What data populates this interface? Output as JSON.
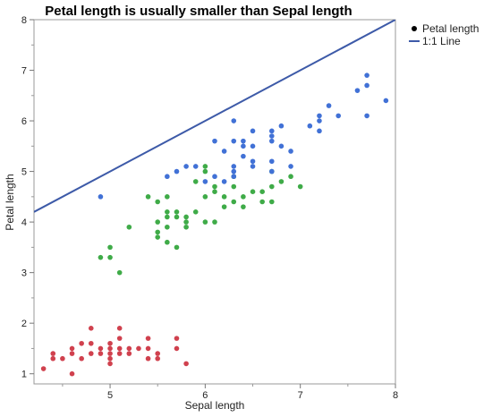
{
  "chart_data": {
    "type": "scatter",
    "title": "Petal length is usually smaller than Sepal length",
    "xlabel": "Sepal length",
    "ylabel": "Petal length",
    "xlim": [
      4.2,
      8.0
    ],
    "ylim": [
      0.8,
      8.0
    ],
    "x_ticks": [
      "5",
      "6",
      "7",
      "8"
    ],
    "y_ticks": [
      "1",
      "2",
      "3",
      "4",
      "5",
      "6",
      "7",
      "8"
    ],
    "grid": false,
    "legend_position": "right",
    "legend": [
      {
        "label": "Petal length",
        "kind": "marker"
      },
      {
        "label": "1:1 Line",
        "kind": "line"
      }
    ],
    "reference_line": {
      "name": "1:1 Line",
      "slope": 1,
      "intercept": 0,
      "color": "#3d5aa8"
    },
    "series": [
      {
        "group": "red",
        "color": "#d0414e",
        "points": [
          [
            4.3,
            1.1
          ],
          [
            4.4,
            1.3
          ],
          [
            4.4,
            1.4
          ],
          [
            4.5,
            1.3
          ],
          [
            4.6,
            1.0
          ],
          [
            4.6,
            1.4
          ],
          [
            4.6,
            1.5
          ],
          [
            4.7,
            1.3
          ],
          [
            4.7,
            1.6
          ],
          [
            4.8,
            1.4
          ],
          [
            4.8,
            1.6
          ],
          [
            4.8,
            1.9
          ],
          [
            4.9,
            1.4
          ],
          [
            4.9,
            1.5
          ],
          [
            5.0,
            1.2
          ],
          [
            5.0,
            1.3
          ],
          [
            5.0,
            1.4
          ],
          [
            5.0,
            1.5
          ],
          [
            5.0,
            1.6
          ],
          [
            5.1,
            1.4
          ],
          [
            5.1,
            1.5
          ],
          [
            5.1,
            1.7
          ],
          [
            5.1,
            1.9
          ],
          [
            5.2,
            1.4
          ],
          [
            5.2,
            1.5
          ],
          [
            5.3,
            1.5
          ],
          [
            5.4,
            1.3
          ],
          [
            5.4,
            1.5
          ],
          [
            5.4,
            1.7
          ],
          [
            5.5,
            1.3
          ],
          [
            5.5,
            1.4
          ],
          [
            5.7,
            1.5
          ],
          [
            5.7,
            1.7
          ],
          [
            5.8,
            1.2
          ]
        ]
      },
      {
        "group": "green",
        "color": "#3fab48",
        "points": [
          [
            4.9,
            3.3
          ],
          [
            5.0,
            3.3
          ],
          [
            5.0,
            3.5
          ],
          [
            5.1,
            3.0
          ],
          [
            5.2,
            3.9
          ],
          [
            5.4,
            4.5
          ],
          [
            5.5,
            3.7
          ],
          [
            5.5,
            3.8
          ],
          [
            5.5,
            4.0
          ],
          [
            5.5,
            4.4
          ],
          [
            5.6,
            3.6
          ],
          [
            5.6,
            3.9
          ],
          [
            5.6,
            4.1
          ],
          [
            5.6,
            4.2
          ],
          [
            5.6,
            4.5
          ],
          [
            5.7,
            3.5
          ],
          [
            5.7,
            4.1
          ],
          [
            5.7,
            4.2
          ],
          [
            5.8,
            3.9
          ],
          [
            5.8,
            4.0
          ],
          [
            5.8,
            4.1
          ],
          [
            5.9,
            4.2
          ],
          [
            5.9,
            4.8
          ],
          [
            6.0,
            4.0
          ],
          [
            6.0,
            4.5
          ],
          [
            6.0,
            5.0
          ],
          [
            6.0,
            5.1
          ],
          [
            6.1,
            4.0
          ],
          [
            6.1,
            4.6
          ],
          [
            6.1,
            4.7
          ],
          [
            6.2,
            4.3
          ],
          [
            6.2,
            4.5
          ],
          [
            6.3,
            4.4
          ],
          [
            6.3,
            4.7
          ],
          [
            6.3,
            4.9
          ],
          [
            6.4,
            4.3
          ],
          [
            6.4,
            4.5
          ],
          [
            6.5,
            4.6
          ],
          [
            6.6,
            4.4
          ],
          [
            6.6,
            4.6
          ],
          [
            6.7,
            4.4
          ],
          [
            6.7,
            4.7
          ],
          [
            6.7,
            5.0
          ],
          [
            6.8,
            4.8
          ],
          [
            6.9,
            4.9
          ],
          [
            7.0,
            4.7
          ]
        ]
      },
      {
        "group": "blue",
        "color": "#4171d6",
        "points": [
          [
            4.9,
            4.5
          ],
          [
            5.6,
            4.9
          ],
          [
            5.7,
            5.0
          ],
          [
            5.8,
            5.1
          ],
          [
            5.9,
            5.1
          ],
          [
            6.0,
            4.8
          ],
          [
            6.1,
            4.9
          ],
          [
            6.1,
            5.6
          ],
          [
            6.2,
            4.8
          ],
          [
            6.2,
            5.4
          ],
          [
            6.3,
            4.9
          ],
          [
            6.3,
            5.0
          ],
          [
            6.3,
            5.1
          ],
          [
            6.3,
            5.6
          ],
          [
            6.3,
            6.0
          ],
          [
            6.4,
            5.3
          ],
          [
            6.4,
            5.5
          ],
          [
            6.4,
            5.6
          ],
          [
            6.5,
            5.1
          ],
          [
            6.5,
            5.2
          ],
          [
            6.5,
            5.5
          ],
          [
            6.5,
            5.8
          ],
          [
            6.7,
            5.0
          ],
          [
            6.7,
            5.2
          ],
          [
            6.7,
            5.6
          ],
          [
            6.7,
            5.7
          ],
          [
            6.7,
            5.8
          ],
          [
            6.8,
            5.5
          ],
          [
            6.8,
            5.9
          ],
          [
            6.9,
            5.1
          ],
          [
            6.9,
            5.4
          ],
          [
            7.1,
            5.9
          ],
          [
            7.2,
            5.8
          ],
          [
            7.2,
            6.0
          ],
          [
            7.2,
            6.1
          ],
          [
            7.3,
            6.3
          ],
          [
            7.4,
            6.1
          ],
          [
            7.6,
            6.6
          ],
          [
            7.7,
            6.1
          ],
          [
            7.7,
            6.7
          ],
          [
            7.7,
            6.9
          ],
          [
            7.9,
            6.4
          ]
        ]
      }
    ]
  }
}
